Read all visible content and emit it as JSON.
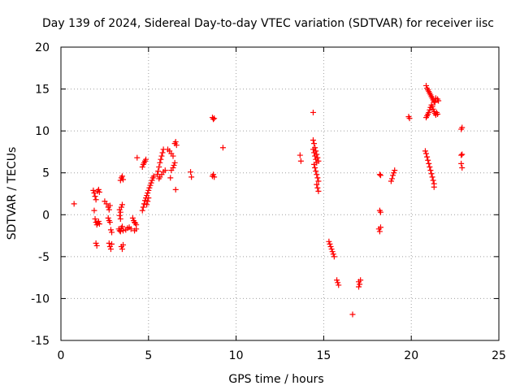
{
  "chart_data": {
    "type": "scatter",
    "title": "Day 139 of 2024, Sidereal Day-to-day VTEC variation (SDTVAR) for receiver iisc",
    "xlabel": "GPS time / hours",
    "ylabel": "SDTVAR / TECUs",
    "xlim": [
      0,
      25
    ],
    "ylim": [
      -15,
      20
    ],
    "xticks": [
      0,
      5,
      10,
      15,
      20,
      25
    ],
    "yticks": [
      -15,
      -10,
      -5,
      0,
      5,
      10,
      15,
      20
    ],
    "grid": true,
    "marker": "+",
    "color": "#ff0000",
    "series": [
      {
        "points": [
          [
            0.75,
            1.3
          ],
          [
            1.85,
            2.9
          ],
          [
            1.9,
            2.6
          ],
          [
            1.95,
            2.2
          ],
          [
            2.0,
            1.8
          ],
          [
            1.9,
            0.5
          ],
          [
            1.95,
            -0.5
          ],
          [
            2.0,
            -0.9
          ],
          [
            2.05,
            -1.2
          ],
          [
            2.1,
            -1.0
          ],
          [
            2.15,
            -0.8
          ],
          [
            2.0,
            -3.4
          ],
          [
            2.05,
            -3.7
          ],
          [
            2.1,
            2.8
          ],
          [
            2.15,
            3.0
          ],
          [
            2.2,
            2.7
          ],
          [
            2.2,
            -1.1
          ],
          [
            2.5,
            1.6
          ],
          [
            2.6,
            1.3
          ],
          [
            2.7,
            0.9
          ],
          [
            2.75,
            0.6
          ],
          [
            2.8,
            1.1
          ],
          [
            2.7,
            -0.4
          ],
          [
            2.75,
            -0.7
          ],
          [
            2.8,
            -0.9
          ],
          [
            2.85,
            -1.8
          ],
          [
            2.9,
            -2.1
          ],
          [
            2.75,
            -3.4
          ],
          [
            2.8,
            -3.8
          ],
          [
            2.85,
            -4.1
          ],
          [
            2.9,
            -3.5
          ],
          [
            3.4,
            4.1
          ],
          [
            3.45,
            4.4
          ],
          [
            3.5,
            4.6
          ],
          [
            3.55,
            4.2
          ],
          [
            3.35,
            0.6
          ],
          [
            3.4,
            0.3
          ],
          [
            3.45,
            0.9
          ],
          [
            3.5,
            1.2
          ],
          [
            3.35,
            -0.1
          ],
          [
            3.4,
            -0.5
          ],
          [
            3.3,
            -1.7
          ],
          [
            3.35,
            -1.9
          ],
          [
            3.4,
            -2.0
          ],
          [
            3.45,
            -1.6
          ],
          [
            3.5,
            -1.4
          ],
          [
            3.55,
            -1.9
          ],
          [
            3.45,
            -3.8
          ],
          [
            3.5,
            -4.1
          ],
          [
            3.55,
            -3.6
          ],
          [
            3.7,
            -1.8
          ],
          [
            3.8,
            -1.6
          ],
          [
            3.9,
            -1.5
          ],
          [
            4.0,
            -1.7
          ],
          [
            4.1,
            -0.4
          ],
          [
            4.15,
            -0.7
          ],
          [
            4.2,
            -0.9
          ],
          [
            4.25,
            -1.0
          ],
          [
            4.3,
            -1.2
          ],
          [
            4.2,
            -1.9
          ],
          [
            4.3,
            -1.7
          ],
          [
            4.35,
            6.8
          ],
          [
            4.65,
            5.7
          ],
          [
            4.7,
            6.0
          ],
          [
            4.75,
            6.2
          ],
          [
            4.8,
            6.4
          ],
          [
            4.85,
            6.6
          ],
          [
            4.65,
            0.5
          ],
          [
            4.7,
            0.9
          ],
          [
            4.75,
            1.3
          ],
          [
            4.8,
            1.7
          ],
          [
            4.85,
            2.0
          ],
          [
            4.9,
            2.3
          ],
          [
            4.95,
            2.6
          ],
          [
            5.0,
            2.9
          ],
          [
            5.05,
            3.2
          ],
          [
            5.1,
            3.5
          ],
          [
            5.15,
            3.8
          ],
          [
            5.2,
            4.1
          ],
          [
            5.25,
            4.4
          ],
          [
            5.3,
            4.6
          ],
          [
            4.9,
            1.2
          ],
          [
            4.95,
            1.6
          ],
          [
            5.0,
            2.0
          ],
          [
            5.5,
            4.8
          ],
          [
            5.55,
            5.2
          ],
          [
            5.6,
            5.7
          ],
          [
            5.65,
            6.2
          ],
          [
            5.7,
            6.6
          ],
          [
            5.75,
            7.0
          ],
          [
            5.8,
            7.4
          ],
          [
            5.85,
            7.8
          ],
          [
            5.6,
            4.3
          ],
          [
            5.65,
            4.5
          ],
          [
            5.75,
            4.8
          ],
          [
            5.85,
            5.1
          ],
          [
            5.95,
            5.3
          ],
          [
            6.1,
            7.8
          ],
          [
            6.2,
            7.6
          ],
          [
            6.3,
            7.3
          ],
          [
            6.4,
            7.0
          ],
          [
            6.3,
            5.3
          ],
          [
            6.4,
            5.6
          ],
          [
            6.45,
            5.9
          ],
          [
            6.5,
            6.2
          ],
          [
            6.25,
            4.4
          ],
          [
            6.5,
            8.5
          ],
          [
            6.55,
            8.7
          ],
          [
            6.6,
            8.3
          ],
          [
            6.55,
            3.0
          ],
          [
            7.4,
            5.1
          ],
          [
            7.45,
            4.5
          ],
          [
            8.65,
            11.6
          ],
          [
            8.7,
            11.4
          ],
          [
            8.75,
            11.5
          ],
          [
            8.65,
            4.6
          ],
          [
            8.7,
            4.8
          ],
          [
            8.75,
            4.5
          ],
          [
            9.25,
            8.0
          ],
          [
            13.65,
            7.1
          ],
          [
            13.7,
            6.4
          ],
          [
            14.4,
            12.2
          ],
          [
            14.4,
            8.9
          ],
          [
            14.45,
            8.5
          ],
          [
            14.5,
            8.0
          ],
          [
            14.55,
            7.6
          ],
          [
            14.6,
            7.2
          ],
          [
            14.65,
            6.8
          ],
          [
            14.7,
            6.4
          ],
          [
            14.45,
            6.0
          ],
          [
            14.5,
            5.6
          ],
          [
            14.55,
            5.2
          ],
          [
            14.6,
            4.8
          ],
          [
            14.65,
            4.4
          ],
          [
            14.7,
            4.0
          ],
          [
            14.6,
            3.6
          ],
          [
            14.65,
            3.2
          ],
          [
            14.7,
            2.8
          ],
          [
            14.4,
            7.8
          ],
          [
            14.45,
            7.4
          ],
          [
            14.5,
            7.0
          ],
          [
            14.55,
            6.6
          ],
          [
            14.6,
            6.2
          ],
          [
            15.3,
            -3.2
          ],
          [
            15.35,
            -3.5
          ],
          [
            15.4,
            -3.8
          ],
          [
            15.45,
            -4.1
          ],
          [
            15.5,
            -4.4
          ],
          [
            15.55,
            -4.7
          ],
          [
            15.6,
            -5.0
          ],
          [
            15.75,
            -7.8
          ],
          [
            15.8,
            -8.1
          ],
          [
            15.85,
            -8.4
          ],
          [
            16.65,
            -11.9
          ],
          [
            17.0,
            -8.0
          ],
          [
            17.05,
            -8.3
          ],
          [
            17.1,
            -7.8
          ],
          [
            17.0,
            -8.6
          ],
          [
            18.2,
            4.8
          ],
          [
            18.25,
            4.7
          ],
          [
            18.2,
            0.5
          ],
          [
            18.25,
            0.3
          ],
          [
            18.15,
            -1.7
          ],
          [
            18.2,
            -2.0
          ],
          [
            18.25,
            -1.5
          ],
          [
            18.85,
            4.0
          ],
          [
            18.9,
            4.3
          ],
          [
            18.95,
            4.7
          ],
          [
            19.0,
            5.0
          ],
          [
            19.05,
            5.3
          ],
          [
            19.85,
            11.7
          ],
          [
            19.9,
            11.5
          ],
          [
            20.85,
            15.4
          ],
          [
            20.9,
            15.1
          ],
          [
            20.95,
            14.9
          ],
          [
            21.0,
            14.7
          ],
          [
            21.05,
            14.5
          ],
          [
            21.1,
            14.3
          ],
          [
            21.15,
            14.1
          ],
          [
            21.2,
            13.9
          ],
          [
            21.25,
            13.7
          ],
          [
            21.3,
            13.5
          ],
          [
            21.35,
            13.4
          ],
          [
            21.4,
            13.9
          ],
          [
            21.5,
            13.8
          ],
          [
            21.55,
            13.6
          ],
          [
            20.85,
            11.6
          ],
          [
            20.9,
            11.8
          ],
          [
            20.95,
            12.0
          ],
          [
            21.0,
            12.2
          ],
          [
            21.05,
            12.5
          ],
          [
            21.1,
            12.8
          ],
          [
            21.15,
            13.1
          ],
          [
            21.2,
            12.9
          ],
          [
            21.25,
            12.6
          ],
          [
            21.3,
            12.3
          ],
          [
            21.35,
            12.1
          ],
          [
            21.4,
            11.9
          ],
          [
            21.45,
            12.2
          ],
          [
            21.5,
            12.0
          ],
          [
            20.8,
            7.6
          ],
          [
            20.85,
            7.3
          ],
          [
            20.9,
            6.9
          ],
          [
            20.95,
            6.5
          ],
          [
            21.0,
            6.1
          ],
          [
            21.05,
            5.7
          ],
          [
            21.1,
            5.3
          ],
          [
            21.15,
            4.9
          ],
          [
            21.2,
            4.5
          ],
          [
            21.25,
            4.1
          ],
          [
            21.3,
            3.7
          ],
          [
            21.3,
            3.3
          ],
          [
            22.85,
            10.2
          ],
          [
            22.9,
            10.4
          ],
          [
            22.85,
            7.1
          ],
          [
            22.9,
            7.2
          ],
          [
            22.85,
            6.1
          ],
          [
            22.9,
            5.6
          ]
        ]
      }
    ]
  }
}
